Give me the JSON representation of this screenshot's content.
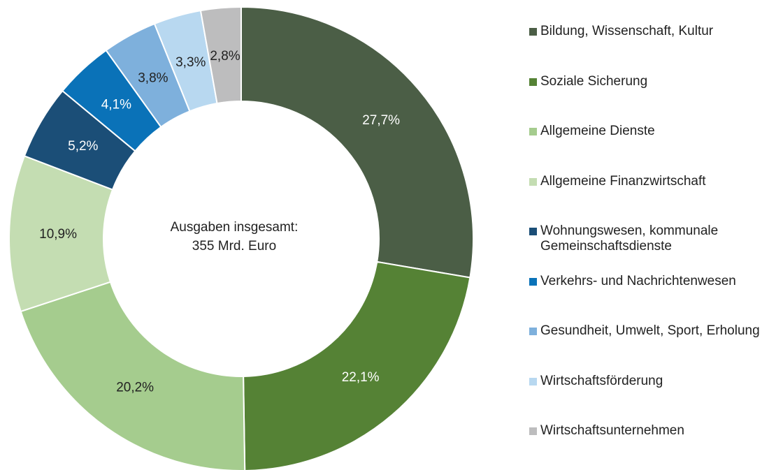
{
  "chart_data": {
    "type": "donut",
    "center_label": [
      "Ausgaben insgesamt:",
      "355 Mrd. Euro"
    ],
    "categories": [
      "Bildung, Wissenschaft, Kultur",
      "Soziale Sicherung",
      "Allgemeine Dienste",
      "Allgemeine Finanzwirtschaft",
      "Wohnungswesen, kommunale Gemeinschaftsdienste",
      "Verkehrs- und Nachrichtenwesen",
      "Gesundheit, Umwelt, Sport, Erholung",
      "Wirtschaftsförderung",
      "Wirtschaftsunternehmen"
    ],
    "values": [
      27.7,
      22.1,
      20.2,
      10.9,
      5.2,
      4.1,
      3.8,
      3.3,
      2.8
    ],
    "value_labels": [
      "27,7%",
      "22,1%",
      "20,2%",
      "10,9%",
      "5,2%",
      "4,1%",
      "3,8%",
      "3,3%",
      "2,8%"
    ],
    "colors": [
      "#4b5e46",
      "#558235",
      "#a5cc8e",
      "#c4ddb2",
      "#1b4e77",
      "#0a72b8",
      "#7eb0dc",
      "#b8d8f0",
      "#bdbdbe"
    ],
    "legend": "right"
  }
}
